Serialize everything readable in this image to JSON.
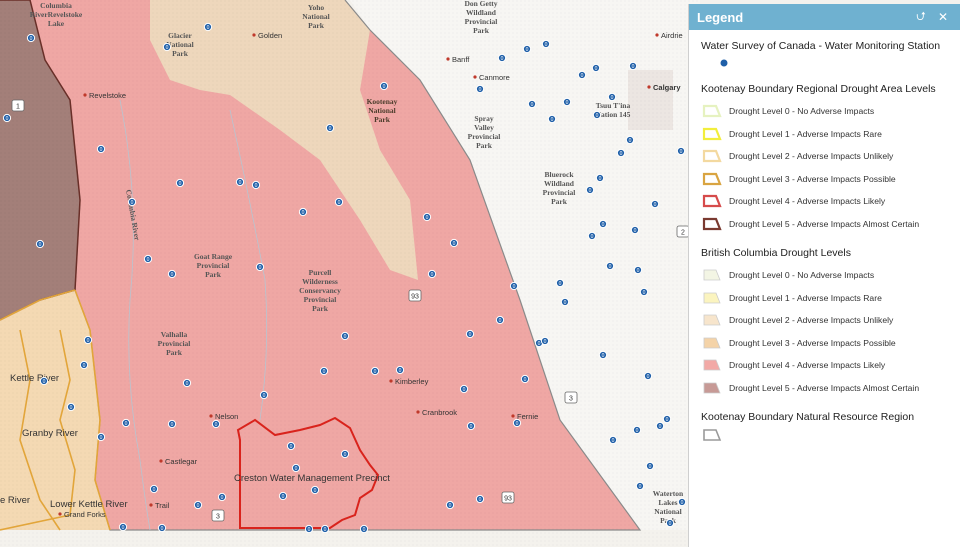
{
  "map": {
    "places": {
      "columbia_revelstoke": "Columbia\nRiverRevelstoke\nLake",
      "glacier": "Glacier\nNational\nPark",
      "yoho": "Yoho\nNational\nPark",
      "don_getty": "Don Getty\nWildland\nProvincial\nPark",
      "kootenay": "Kootenay\nNational\nPark",
      "spray_valley": "Spray\nValley\nProvincial\nPark",
      "bluerock": "Bluerock\nWildland\nProvincial\nPark",
      "tsuu_tina": "Tsuu T'ina\nNation 145",
      "goat_range": "Goat Range\nProvincial\nPark",
      "purcell": "Purcell\nWilderness\nConservancy\nProvincial\nPark",
      "valhalla": "Valhalla\nProvincial\nPark",
      "waterton": "Waterton\nLakes\nNational\nPark",
      "columbia_river": "Columbia River"
    },
    "cities": {
      "golden": "Golden",
      "airdrie": "Airdrie",
      "banff": "Banff",
      "canmore": "Canmore",
      "calgary": "Calgary",
      "revelstoke": "Revelstoke",
      "kimberley": "Kimberley",
      "cranbrook": "Cranbrook",
      "fernie": "Fernie",
      "nelson": "Nelson",
      "castlegar": "Castlegar",
      "trail": "Trail",
      "grand_forks": "Grand Forks"
    },
    "regions": {
      "kettle": "Kettle River",
      "granby": "Granby River",
      "west_kettle": "e River",
      "lower_kettle": "Lower Kettle River",
      "creston": "Creston Water Management Precinct"
    },
    "shields": {
      "hwy93a": "93",
      "hwy93b": "93",
      "hwy3a": "3",
      "hwy3b": "3",
      "hwy2": "2",
      "hwy1": "1"
    },
    "station_glyph": "0"
  },
  "legend": {
    "title": "Legend",
    "collapse_icon": "chevrons-up-icon",
    "close_icon": "close-icon",
    "sections": [
      {
        "title": "Water Survey of Canada - Water Monitoring Station",
        "type": "station",
        "icon_color": "#1f5fa8"
      },
      {
        "title": "Kootenay Boundary Regional Drought Area Levels",
        "type": "outline",
        "items": [
          {
            "label": "Drought Level 0 - No Adverse Impacts",
            "color": "#e6f2c0"
          },
          {
            "label": "Drought Level 1 - Adverse Impacts Rare",
            "color": "#f2ee3c"
          },
          {
            "label": "Drought Level 2 - Adverse Impacts Unlikely",
            "color": "#f3d9a0"
          },
          {
            "label": "Drought Level 3 - Adverse Impacts Possible",
            "color": "#d9a441"
          },
          {
            "label": "Drought Level 4 - Adverse Impacts Likely",
            "color": "#d64b4b"
          },
          {
            "label": "Drought Level 5 - Adverse Impacts Almost Certain",
            "color": "#7a3a30"
          }
        ]
      },
      {
        "title": "British Columbia Drought Levels",
        "type": "fill",
        "items": [
          {
            "label": "Drought Level 0 - No Adverse Impacts",
            "color": "#f3f5e4"
          },
          {
            "label": "Drought Level 1 - Adverse Impacts Rare",
            "color": "#fbf4bf"
          },
          {
            "label": "Drought Level 2 - Adverse Impacts Unlikely",
            "color": "#f7e5cc"
          },
          {
            "label": "Drought Level 3 - Adverse Impacts Possible",
            "color": "#f4d3a8"
          },
          {
            "label": "Drought Level 4 - Adverse Impacts Likely",
            "color": "#f2a9a6"
          },
          {
            "label": "Drought Level 5 - Adverse Impacts Almost Certain",
            "color": "#c79a96"
          }
        ]
      },
      {
        "title": "Kootenay Boundary Natural Resource Region",
        "type": "region",
        "icon_color": "#9a9a9a"
      }
    ]
  }
}
